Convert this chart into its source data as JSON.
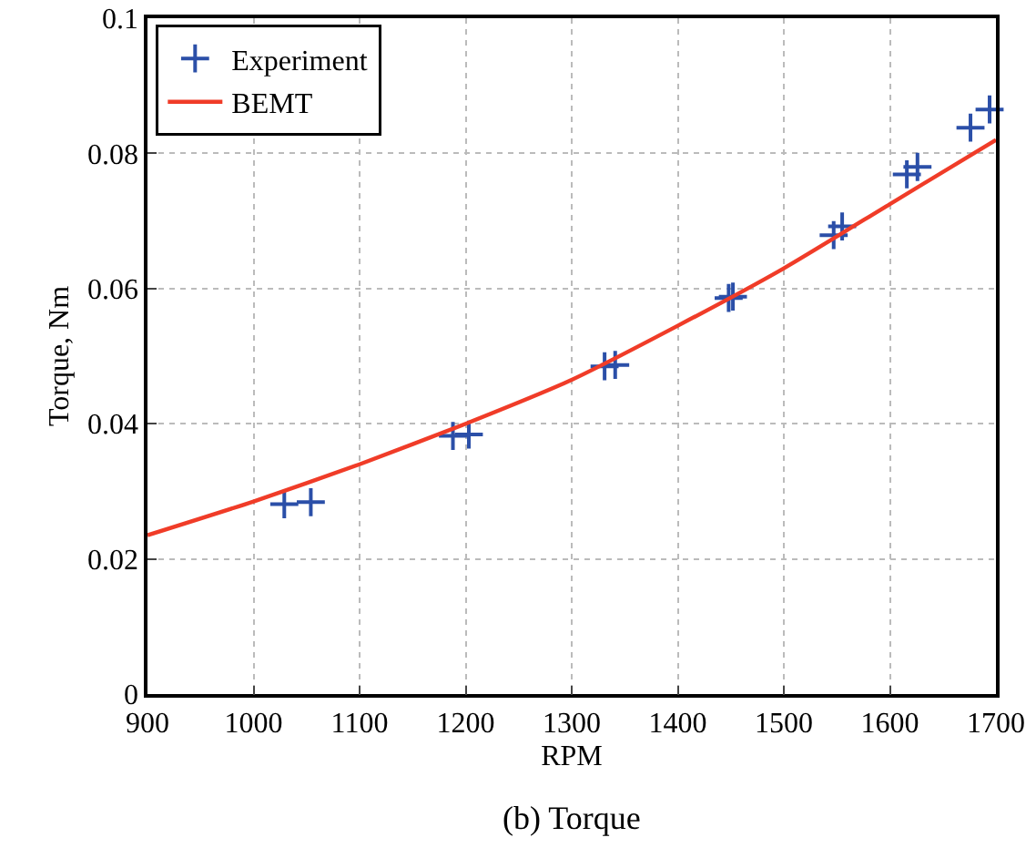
{
  "chart_data": {
    "type": "scatter",
    "xlabel": "RPM",
    "ylabel": "Torque, Nm",
    "annotations": [
      "(b) Torque"
    ],
    "xlim": [
      900,
      1700
    ],
    "xticks": [
      900,
      1000,
      1100,
      1200,
      1300,
      1400,
      1500,
      1600,
      1700
    ],
    "ylim": [
      0,
      0.1
    ],
    "yticks": [
      0,
      0.02,
      0.04,
      0.06,
      0.08,
      0.1
    ],
    "grid": true,
    "legend": "top left",
    "series": [
      {
        "name": "Experiment",
        "marker": "cross",
        "color": "#2b4fa8",
        "x": [
          1029,
          1054,
          1188,
          1203,
          1331,
          1341,
          1448,
          1452,
          1547,
          1555,
          1616,
          1626,
          1676,
          1694
        ],
        "values": [
          0.0281,
          0.0284,
          0.0382,
          0.0384,
          0.0485,
          0.0487,
          0.0586,
          0.0588,
          0.0679,
          0.0692,
          0.0769,
          0.078,
          0.0838,
          0.0865
        ]
      },
      {
        "name": "BEMT",
        "type": "line",
        "marker": "none",
        "line_style": "solid",
        "color": "#f03c28",
        "x": [
          900,
          1000,
          1100,
          1200,
          1300,
          1400,
          1500,
          1600,
          1700
        ],
        "values": [
          0.0235,
          0.0285,
          0.034,
          0.04,
          0.0465,
          0.0545,
          0.063,
          0.0725,
          0.082
        ]
      }
    ]
  }
}
